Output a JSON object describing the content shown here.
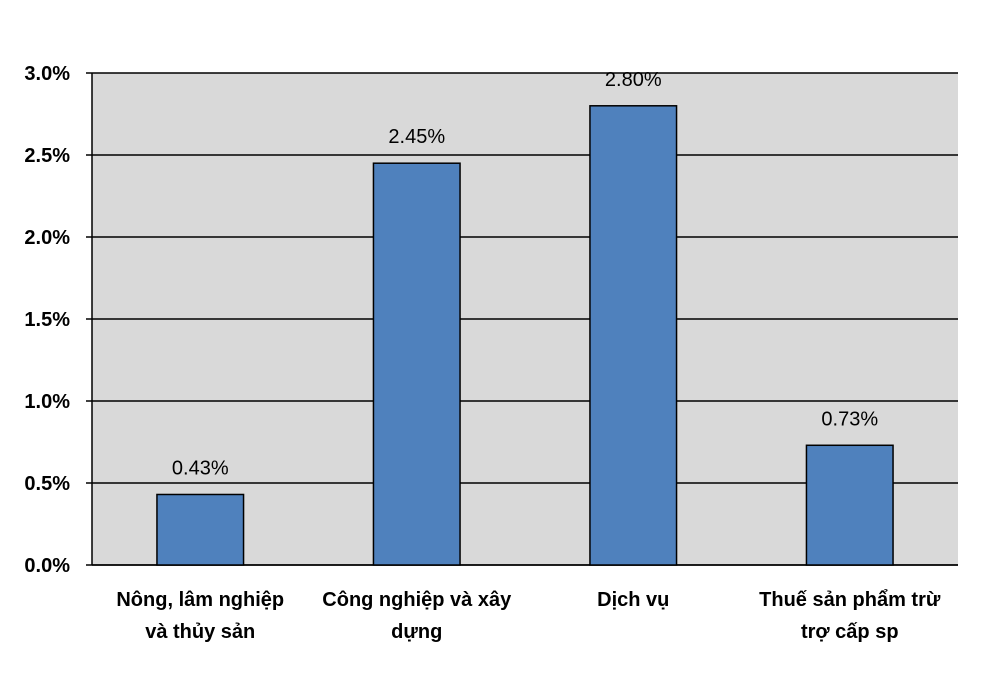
{
  "chart_data": {
    "type": "bar",
    "title": "",
    "xlabel": "",
    "ylabel": "",
    "categories": [
      [
        "Nông, lâm nghiệp",
        "và thủy sản"
      ],
      [
        "Công nghiệp và xây",
        "dựng"
      ],
      [
        "Dịch vụ"
      ],
      [
        "Thuế sản phẩm trừ",
        "trợ cấp sp"
      ]
    ],
    "values": [
      0.43,
      2.45,
      2.8,
      0.73
    ],
    "data_labels": [
      "0.43%",
      "2.45%",
      "2.80%",
      "0.73%"
    ],
    "ylim": [
      0,
      3.0
    ],
    "yticks": [
      0,
      0.5,
      1.0,
      1.5,
      2.0,
      2.5,
      3.0
    ],
    "ytick_labels": [
      "0.0%",
      "0.5%",
      "1.0%",
      "1.5%",
      "2.0%",
      "2.5%",
      "3.0%"
    ],
    "grid": true,
    "legend": "none",
    "colors": {
      "bar": "#4F81BD",
      "bar_edge": "#000000",
      "plot_bg": "#D9D9D9",
      "gridline": "#000000"
    }
  }
}
